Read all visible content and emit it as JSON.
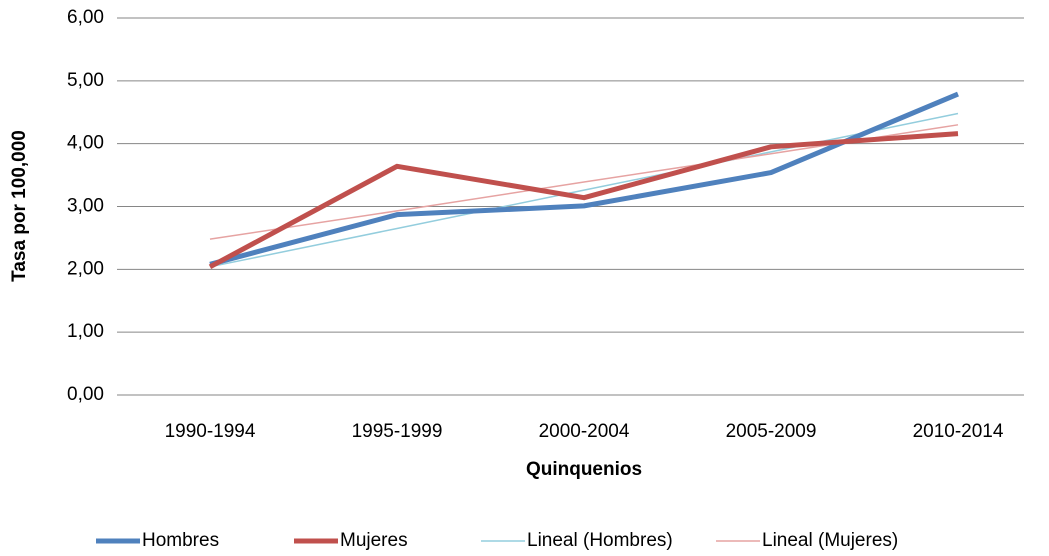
{
  "chart_data": {
    "type": "line",
    "x_label": "Quinquenios",
    "y_label": "Tasa por 100,000",
    "categories": [
      "1990-1994",
      "1995-1999",
      "2000-2004",
      "2005-2009",
      "2010-2014"
    ],
    "series": [
      {
        "name": "Hombres",
        "color": "#4f81bd",
        "width": 5,
        "values": [
          2.08,
          2.87,
          3.01,
          3.54,
          4.79
        ]
      },
      {
        "name": "Mujeres",
        "color": "#c0504d",
        "width": 5,
        "values": [
          2.04,
          3.64,
          3.14,
          3.95,
          4.16
        ]
      },
      {
        "name": "Lineal (Hombres)",
        "color": "#93cddd",
        "width": 1.5,
        "values": [
          2.04,
          2.65,
          3.26,
          3.87,
          4.48
        ]
      },
      {
        "name": "Lineal (Mujeres)",
        "color": "#e6a3a2",
        "width": 1.5,
        "values": [
          2.48,
          2.93,
          3.39,
          3.84,
          4.3
        ]
      }
    ],
    "ylim": [
      0,
      6
    ],
    "yticks": [
      {
        "value": 0,
        "label": "0,00"
      },
      {
        "value": 1,
        "label": "1,00"
      },
      {
        "value": 2,
        "label": "2,00"
      },
      {
        "value": 3,
        "label": "3,00"
      },
      {
        "value": 4,
        "label": "4,00"
      },
      {
        "value": 5,
        "label": "5,00"
      },
      {
        "value": 6,
        "label": "6,00"
      }
    ],
    "grid": true,
    "legend": "bottom"
  }
}
